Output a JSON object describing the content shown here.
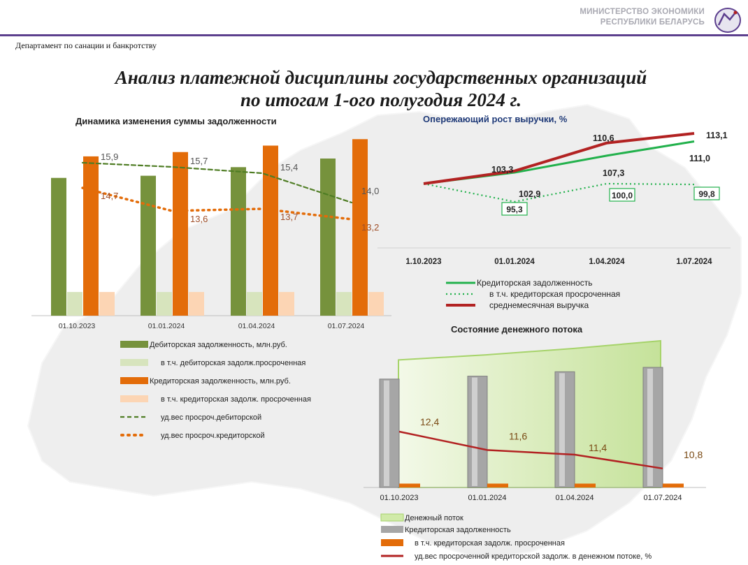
{
  "header": {
    "ministry_line1": "МИНИСТЕРСТВО ЭКОНОМИКИ",
    "ministry_line2": "РЕСПУБЛИКИ БЕЛАРУСЬ",
    "department": "Департамент по санации и банкротству",
    "title_line1": "Анализ платежной дисциплины государственных организаций",
    "title_line2": "по итогам 1-ого полугодия 2024 г."
  },
  "colors": {
    "green_dark": "#76923c",
    "green_light": "#d7e4bd",
    "orange": "#e36c09",
    "orange_light": "#fcd5b4",
    "dash_green": "#4f7d24",
    "dot_orange": "#e36c09",
    "line_green": "#22b14c",
    "line_red": "#b22222",
    "bar_grey": "#a6a6a6",
    "cash_flow_fill": "#d9ecb8",
    "header_rule": "#5c3f8e"
  },
  "chart_data": [
    {
      "type": "bar",
      "title": "Динамика изменения суммы задолженности",
      "categories": [
        "01.10.2023",
        "01.01.2024",
        "01.04.2024",
        "01.07.2024"
      ],
      "series": [
        {
          "name": "Дебиторская задолженность, млн.руб.",
          "kind": "bar",
          "values": [
            64,
            65,
            69,
            73
          ]
        },
        {
          "name": "в т.ч. дебиторская задолж.просроченная",
          "kind": "bar",
          "values": [
            11,
            11,
            11,
            11
          ]
        },
        {
          "name": "Кредиторская задолженность, млн.руб.",
          "kind": "bar",
          "values": [
            74,
            76,
            79,
            82
          ]
        },
        {
          "name": "в т.ч. кредиторская задолж. просроченная",
          "kind": "bar",
          "values": [
            11,
            11,
            11,
            11
          ]
        },
        {
          "name": "уд.вес просроч.дебиторской",
          "kind": "line-dashed",
          "values": [
            15.9,
            15.7,
            15.4,
            14.0
          ],
          "labels": [
            "15,9",
            "15,7",
            "15,4",
            "14,0"
          ]
        },
        {
          "name": "уд.вес просроч.кредиторской",
          "kind": "line-dotted",
          "values": [
            14.7,
            13.6,
            13.7,
            13.2
          ],
          "labels": [
            "14,7",
            "13,6",
            "13,7",
            "13,2"
          ]
        }
      ]
    },
    {
      "type": "line",
      "title": "Опережающий рост выручки, %",
      "categories": [
        "1.10.2023",
        "01.01.2024",
        "1.04.2024",
        "1.07.2024"
      ],
      "series": [
        {
          "name": "Кредиторская задолженность",
          "values": [
            100.0,
            102.9,
            107.3,
            111.0
          ],
          "labels": [
            "",
            "102,9",
            "107,3",
            "111,0"
          ]
        },
        {
          "name": "в т.ч. кредиторская просроченная",
          "values": [
            100.0,
            95.3,
            100.0,
            99.8
          ],
          "labels": [
            "",
            "95,3",
            "100,0",
            "99,8"
          ]
        },
        {
          "name": "среднемесячная выручка",
          "values": [
            100.0,
            103.3,
            110.6,
            113.1
          ],
          "labels": [
            "",
            "103,3",
            "110,6",
            "113,1"
          ]
        }
      ]
    },
    {
      "type": "bar",
      "title": "Состояние денежного потока",
      "categories": [
        "01.10.2023",
        "01.01.2024",
        "01.04.2024",
        "01.07.2024"
      ],
      "series": [
        {
          "name": "Денежный поток",
          "kind": "area",
          "values": [
            100,
            104,
            109,
            115
          ]
        },
        {
          "name": "Кредиторская задолженность",
          "kind": "bar",
          "values": [
            74,
            76,
            79,
            82
          ]
        },
        {
          "name": "в т.ч. кредиторская задолж. просроченная",
          "kind": "bar",
          "values": [
            11,
            11,
            11,
            11
          ]
        },
        {
          "name": "уд.вес просроченной кредиторской задолж. в денежном потоке, %",
          "kind": "line",
          "values": [
            12.4,
            11.6,
            11.4,
            10.8
          ],
          "labels": [
            "12,4",
            "11,6",
            "11,4",
            "10,8"
          ]
        }
      ]
    }
  ]
}
